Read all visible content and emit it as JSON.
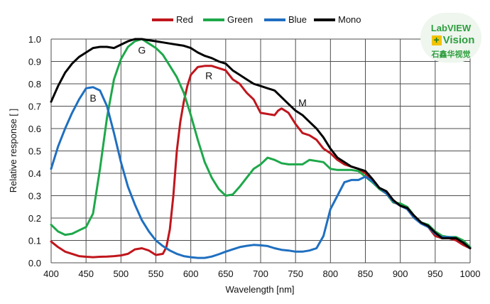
{
  "chart_data": {
    "type": "line",
    "xlabel": "Wavelength [nm]",
    "ylabel": "Relative response [ ]",
    "xlim": [
      400,
      1000
    ],
    "ylim": [
      0,
      1
    ],
    "xticks": [
      "400",
      "450",
      "500",
      "550",
      "600",
      "650",
      "700",
      "750",
      "800",
      "850",
      "900",
      "950",
      "1000"
    ],
    "yticks": [
      "0.0",
      "0.1",
      "0.2",
      "0.3",
      "0.4",
      "0.5",
      "0.6",
      "0.7",
      "0.8",
      "0.9",
      "1.0"
    ],
    "grid": true,
    "legend_position": "top-center",
    "series": [
      {
        "name": "Red",
        "color": "#c0161d",
        "x": [
          400,
          410,
          420,
          430,
          440,
          450,
          460,
          470,
          480,
          490,
          500,
          510,
          520,
          530,
          540,
          550,
          560,
          565,
          570,
          575,
          580,
          585,
          590,
          595,
          600,
          610,
          620,
          630,
          640,
          650,
          660,
          670,
          680,
          690,
          700,
          710,
          720,
          725,
          730,
          740,
          750,
          760,
          770,
          780,
          790,
          800,
          810,
          820,
          830,
          840,
          850,
          860,
          870,
          880,
          890,
          900,
          910,
          920,
          930,
          940,
          950,
          960,
          970,
          980,
          990,
          1000
        ],
        "y": [
          0.095,
          0.07,
          0.05,
          0.04,
          0.03,
          0.027,
          0.025,
          0.027,
          0.028,
          0.03,
          0.033,
          0.04,
          0.06,
          0.065,
          0.055,
          0.035,
          0.04,
          0.07,
          0.15,
          0.3,
          0.5,
          0.63,
          0.72,
          0.79,
          0.84,
          0.875,
          0.88,
          0.88,
          0.87,
          0.86,
          0.82,
          0.8,
          0.76,
          0.73,
          0.67,
          0.665,
          0.66,
          0.68,
          0.69,
          0.67,
          0.62,
          0.58,
          0.57,
          0.55,
          0.51,
          0.49,
          0.46,
          0.44,
          0.43,
          0.42,
          0.4,
          0.37,
          0.33,
          0.31,
          0.27,
          0.26,
          0.24,
          0.2,
          0.18,
          0.16,
          0.12,
          0.11,
          0.11,
          0.1,
          0.08,
          0.065
        ]
      },
      {
        "name": "Green",
        "color": "#1ea84a",
        "x": [
          400,
          410,
          420,
          430,
          440,
          450,
          460,
          470,
          480,
          490,
          500,
          510,
          520,
          530,
          540,
          550,
          560,
          570,
          580,
          590,
          600,
          610,
          620,
          630,
          640,
          650,
          660,
          670,
          680,
          690,
          700,
          710,
          720,
          730,
          740,
          750,
          760,
          770,
          780,
          790,
          800,
          810,
          820,
          830,
          840,
          850,
          860,
          870,
          880,
          890,
          900,
          910,
          920,
          930,
          940,
          950,
          960,
          970,
          980,
          990,
          1000
        ],
        "y": [
          0.17,
          0.14,
          0.125,
          0.13,
          0.145,
          0.16,
          0.22,
          0.42,
          0.65,
          0.82,
          0.91,
          0.965,
          0.99,
          1.0,
          0.98,
          0.96,
          0.93,
          0.88,
          0.83,
          0.76,
          0.66,
          0.55,
          0.45,
          0.38,
          0.33,
          0.3,
          0.305,
          0.34,
          0.38,
          0.42,
          0.44,
          0.47,
          0.46,
          0.445,
          0.44,
          0.44,
          0.44,
          0.46,
          0.455,
          0.45,
          0.42,
          0.415,
          0.415,
          0.415,
          0.41,
          0.385,
          0.36,
          0.33,
          0.31,
          0.27,
          0.265,
          0.25,
          0.21,
          0.18,
          0.17,
          0.14,
          0.12,
          0.115,
          0.115,
          0.1,
          0.07
        ]
      },
      {
        "name": "Blue",
        "color": "#1f6fc0",
        "x": [
          400,
          410,
          420,
          430,
          440,
          450,
          460,
          470,
          480,
          490,
          500,
          510,
          520,
          530,
          540,
          550,
          560,
          570,
          580,
          590,
          600,
          610,
          620,
          630,
          640,
          650,
          660,
          670,
          680,
          690,
          700,
          710,
          720,
          730,
          740,
          750,
          760,
          770,
          780,
          790,
          800,
          810,
          820,
          830,
          840,
          850,
          860,
          870,
          880,
          890,
          900,
          910,
          920,
          930,
          940,
          950,
          960,
          970,
          980,
          990,
          1000
        ],
        "y": [
          0.42,
          0.52,
          0.6,
          0.67,
          0.73,
          0.78,
          0.785,
          0.77,
          0.7,
          0.58,
          0.45,
          0.34,
          0.26,
          0.19,
          0.14,
          0.1,
          0.075,
          0.055,
          0.04,
          0.03,
          0.025,
          0.022,
          0.022,
          0.028,
          0.038,
          0.05,
          0.06,
          0.07,
          0.076,
          0.08,
          0.078,
          0.075,
          0.065,
          0.058,
          0.055,
          0.05,
          0.05,
          0.055,
          0.065,
          0.12,
          0.24,
          0.3,
          0.36,
          0.37,
          0.37,
          0.385,
          0.365,
          0.335,
          0.31,
          0.275,
          0.255,
          0.24,
          0.2,
          0.175,
          0.16,
          0.13,
          0.115,
          0.115,
          0.11,
          0.09,
          0.065
        ]
      },
      {
        "name": "Mono",
        "color": "#000000",
        "x": [
          400,
          410,
          420,
          430,
          440,
          450,
          460,
          470,
          480,
          490,
          500,
          510,
          520,
          530,
          540,
          550,
          560,
          570,
          580,
          590,
          600,
          610,
          620,
          630,
          640,
          650,
          660,
          670,
          680,
          690,
          700,
          710,
          720,
          730,
          740,
          750,
          760,
          770,
          780,
          790,
          800,
          810,
          820,
          830,
          840,
          850,
          860,
          870,
          880,
          890,
          900,
          910,
          920,
          930,
          940,
          950,
          960,
          970,
          980,
          990,
          1000
        ],
        "y": [
          0.72,
          0.79,
          0.85,
          0.89,
          0.92,
          0.94,
          0.96,
          0.965,
          0.965,
          0.96,
          0.975,
          0.99,
          1.0,
          1.0,
          0.995,
          0.99,
          0.985,
          0.98,
          0.975,
          0.97,
          0.96,
          0.94,
          0.925,
          0.915,
          0.9,
          0.89,
          0.86,
          0.84,
          0.82,
          0.8,
          0.79,
          0.78,
          0.77,
          0.74,
          0.71,
          0.68,
          0.66,
          0.63,
          0.6,
          0.56,
          0.51,
          0.47,
          0.45,
          0.43,
          0.42,
          0.41,
          0.375,
          0.335,
          0.32,
          0.28,
          0.255,
          0.245,
          0.21,
          0.18,
          0.165,
          0.135,
          0.11,
          0.11,
          0.11,
          0.09,
          0.065
        ]
      }
    ],
    "annotations": [
      {
        "text": "B",
        "x": 460,
        "y": 0.72
      },
      {
        "text": "G",
        "x": 530,
        "y": 0.935
      },
      {
        "text": "R",
        "x": 626,
        "y": 0.82
      },
      {
        "text": "M",
        "x": 760,
        "y": 0.7
      }
    ]
  },
  "watermark": {
    "line1": "LabVIEW",
    "plus": "+",
    "line2": "Vision",
    "line3": "石鑫华视觉"
  }
}
